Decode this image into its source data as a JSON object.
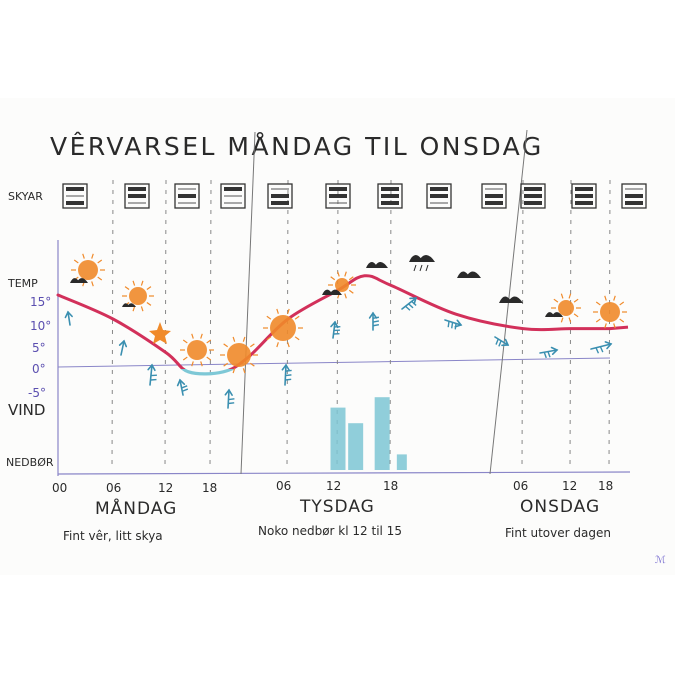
{
  "title": "VÊRVARSEL MÅNDAG TIL ONSDAG",
  "signature": "ℳ",
  "rows": {
    "skyar": "SKYAR",
    "temp": "TEMP",
    "vind": "VIND",
    "nedbor": "NEDBØR"
  },
  "temp_ticks": [
    "15°",
    "10°",
    "5°",
    "0°",
    "-5°"
  ],
  "days": [
    {
      "name": "MÅNDAG",
      "note": "Fint vêr, litt skya"
    },
    {
      "name": "TYSDAG",
      "note": "Noko nedbør kl 12 til 15"
    },
    {
      "name": "ONSDAG",
      "note": "Fint utover dagen"
    }
  ],
  "hour_ticks": [
    "00",
    "06",
    "12",
    "18",
    "06",
    "12",
    "18",
    "06",
    "12",
    "18"
  ],
  "colors": {
    "warm_line": "#d2305a",
    "cold_line": "#7ec8d6",
    "sun": "#f08a2a",
    "wind_arrow": "#3a8fb0",
    "precip": "#7cc6d4",
    "axis": "#8a86c8",
    "cloud": "#2a2a2a"
  },
  "chart_data": {
    "type": "line",
    "title": "VÊRVARSEL MÅNDAG TIL ONSDAG",
    "x_unit": "hours from Monday 00",
    "x_ticks": [
      "00",
      "06",
      "12",
      "18",
      "06",
      "12",
      "18",
      "06",
      "12",
      "18"
    ],
    "series": [
      {
        "name": "TEMP",
        "x": [
          0,
          6,
          12,
          15,
          20,
          24,
          30,
          36,
          39,
          42,
          48,
          54,
          60,
          66
        ],
        "values": [
          15,
          10,
          3,
          -1,
          -1,
          2,
          10,
          16,
          19,
          17,
          11,
          8,
          8,
          8
        ]
      },
      {
        "name": "NEDBØR",
        "type": "bar",
        "x": [
          36,
          38,
          41,
          43
        ],
        "values": [
          1.2,
          0.9,
          1.4,
          0.3
        ]
      }
    ],
    "ylim": [
      -7,
      19
    ],
    "grid": false
  }
}
